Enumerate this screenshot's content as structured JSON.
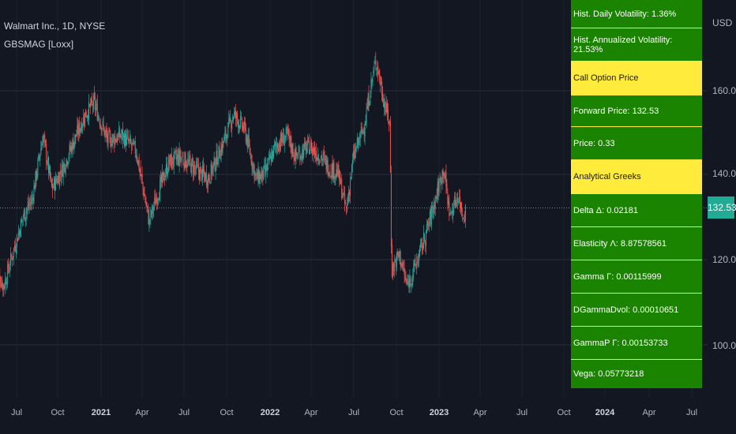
{
  "chart_title": "Walmart Inc., 1D, NYSE",
  "indicator_name": "GBSMAG [Loxx]",
  "currency": "USD",
  "last_price_label": "132.53",
  "colors": {
    "up": "#26a69a",
    "down": "#ef5350",
    "table_bg": "#1a8400",
    "table_header": "#ffeb3b",
    "price_line": "#26a69a"
  },
  "table": {
    "rows": [
      {
        "text": "Hist. Daily Volatility: 1.36%",
        "header": false
      },
      {
        "text": "Hist. Annualized Volatility: 21.53%",
        "header": false
      },
      {
        "text": "Call Option Price",
        "header": true
      },
      {
        "text": "Forward Price: 132.53",
        "header": false
      },
      {
        "text": "Price: 0.33",
        "header": false
      },
      {
        "text": "Analytical Greeks",
        "header": true
      },
      {
        "text": "Delta Δ: 0.02181",
        "header": false
      },
      {
        "text": "Elasticity Λ: 8.87578561",
        "header": false
      },
      {
        "text": "Gamma Γ: 0.00115999",
        "header": false
      },
      {
        "text": "DGammaDvol: 0.00010651",
        "header": false
      },
      {
        "text": "GammaP Γ: 0.00153733",
        "header": false
      },
      {
        "text": "Vega: 0.05773218",
        "header": false
      }
    ]
  },
  "chart_data": {
    "type": "candlestick",
    "title": "Walmart Inc., 1D, NYSE",
    "ylabel": "USD",
    "y_ticks": [
      "160.00",
      "140.00",
      "120.00",
      "100.00"
    ],
    "x_ticks": [
      {
        "label": "Jul",
        "bold": false
      },
      {
        "label": "Oct",
        "bold": false
      },
      {
        "label": "2021",
        "bold": true
      },
      {
        "label": "Apr",
        "bold": false
      },
      {
        "label": "Jul",
        "bold": false
      },
      {
        "label": "Oct",
        "bold": false
      },
      {
        "label": "2022",
        "bold": true
      },
      {
        "label": "Apr",
        "bold": false
      },
      {
        "label": "Jul",
        "bold": false
      },
      {
        "label": "Oct",
        "bold": false
      },
      {
        "label": "2023",
        "bold": true
      },
      {
        "label": "Apr",
        "bold": false
      },
      {
        "label": "Jul",
        "bold": false
      },
      {
        "label": "Oct",
        "bold": false
      },
      {
        "label": "2024",
        "bold": true
      },
      {
        "label": "Apr",
        "bold": false
      },
      {
        "label": "Jul",
        "bold": false
      }
    ],
    "ylim": [
      90.6,
      171.1
    ],
    "last_price": 132.53,
    "grid": true,
    "series": [
      {
        "close_anchors": [
          [
            "2020-06-01",
            121
          ],
          [
            "2020-06-15",
            118
          ],
          [
            "2020-07-01",
            124
          ],
          [
            "2020-07-20",
            131
          ],
          [
            "2020-08-05",
            134
          ],
          [
            "2020-08-25",
            146
          ],
          [
            "2020-09-10",
            136
          ],
          [
            "2020-09-30",
            140
          ],
          [
            "2020-10-20",
            145
          ],
          [
            "2020-11-10",
            150
          ],
          [
            "2020-11-25",
            152
          ],
          [
            "2020-12-20",
            145
          ],
          [
            "2021-01-15",
            146
          ],
          [
            "2021-02-10",
            143
          ],
          [
            "2021-03-05",
            130
          ],
          [
            "2021-03-20",
            135
          ],
          [
            "2021-04-10",
            141
          ],
          [
            "2021-05-01",
            142
          ],
          [
            "2021-05-25",
            140
          ],
          [
            "2021-06-20",
            138
          ],
          [
            "2021-07-15",
            144
          ],
          [
            "2021-08-05",
            150
          ],
          [
            "2021-08-25",
            147
          ],
          [
            "2021-09-15",
            138
          ],
          [
            "2021-10-01",
            139
          ],
          [
            "2021-10-20",
            144
          ],
          [
            "2021-11-10",
            146
          ],
          [
            "2021-11-25",
            142
          ],
          [
            "2021-12-20",
            144
          ],
          [
            "2022-01-10",
            142
          ],
          [
            "2022-01-25",
            140
          ],
          [
            "2022-02-10",
            139
          ],
          [
            "2022-02-25",
            132
          ],
          [
            "2022-03-10",
            142
          ],
          [
            "2022-03-30",
            148
          ],
          [
            "2022-04-12",
            156
          ],
          [
            "2022-04-20",
            160
          ],
          [
            "2022-05-05",
            152
          ],
          [
            "2022-05-15",
            148
          ],
          [
            "2022-05-18",
            121
          ],
          [
            "2022-06-01",
            124
          ],
          [
            "2022-06-15",
            118
          ],
          [
            "2022-07-01",
            122
          ],
          [
            "2022-07-20",
            128
          ],
          [
            "2022-08-10",
            136
          ],
          [
            "2022-08-20",
            140
          ],
          [
            "2022-09-01",
            131
          ],
          [
            "2022-09-15",
            135
          ],
          [
            "2022-09-25",
            131
          ],
          [
            "2022-09-30",
            132.53
          ]
        ]
      }
    ]
  }
}
